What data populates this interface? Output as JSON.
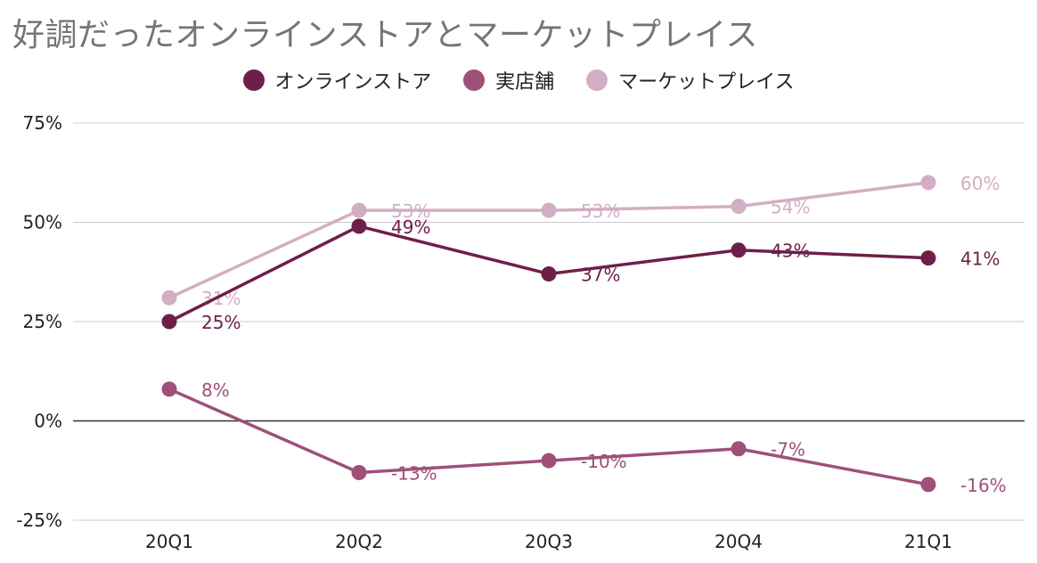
{
  "chart_data": {
    "type": "line",
    "title": "好調だったオンラインストアとマーケットプレイス",
    "categories": [
      "20Q1",
      "20Q2",
      "20Q3",
      "20Q4",
      "21Q1"
    ],
    "series": [
      {
        "name": "オンラインストア",
        "color": "#6d1f4a",
        "values": [
          25,
          49,
          37,
          43,
          41
        ],
        "labels": [
          "25%",
          "49%",
          "37%",
          "43%",
          "41%"
        ]
      },
      {
        "name": "実店舗",
        "color": "#9e5079",
        "values": [
          8,
          -13,
          -10,
          -7,
          -16
        ],
        "labels": [
          "8%",
          "-13%",
          "-10%",
          "-7%",
          "-16%"
        ]
      },
      {
        "name": "マーケットプレイス",
        "color": "#d3aec3",
        "values": [
          31,
          53,
          53,
          54,
          60
        ],
        "labels": [
          "31%",
          "53%",
          "53%",
          "54%",
          "60%"
        ]
      }
    ],
    "yticks": [
      "75%",
      "50%",
      "25%",
      "0%",
      "-25%"
    ],
    "ytick_values": [
      75,
      50,
      25,
      0,
      -25
    ],
    "ylim": [
      -25,
      75
    ],
    "grid": true,
    "legend_position": "top"
  }
}
